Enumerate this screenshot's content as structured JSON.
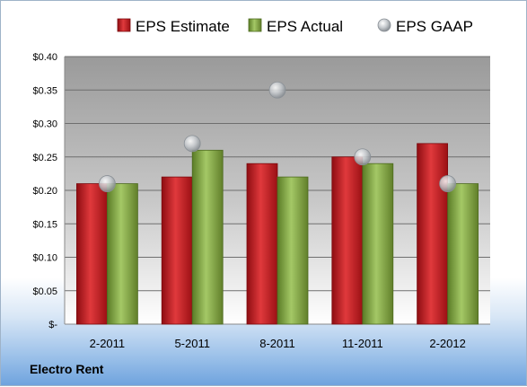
{
  "company": "Electro Rent",
  "chart_data": {
    "type": "bar",
    "categories": [
      "2-2011",
      "5-2011",
      "8-2011",
      "11-2011",
      "2-2012"
    ],
    "series": [
      {
        "name": "EPS Estimate",
        "kind": "bar",
        "color": "#c0151b",
        "values": [
          0.21,
          0.22,
          0.24,
          0.25,
          0.27
        ]
      },
      {
        "name": "EPS Actual",
        "kind": "bar",
        "color": "#7fa83c",
        "values": [
          0.21,
          0.26,
          0.22,
          0.24,
          0.21
        ]
      },
      {
        "name": "EPS GAAP",
        "kind": "marker",
        "color": "#b5b9bd",
        "values": [
          0.21,
          0.27,
          0.35,
          0.25,
          0.21
        ]
      }
    ],
    "ylim": [
      0,
      0.4
    ],
    "yticks": [
      0,
      0.05,
      0.1,
      0.15,
      0.2,
      0.25,
      0.3,
      0.35,
      0.4
    ],
    "ytick_labels": [
      "$-",
      "$0.05",
      "$0.10",
      "$0.15",
      "$0.20",
      "$0.25",
      "$0.30",
      "$0.35",
      "$0.40"
    ],
    "legend": "top",
    "grid": true
  }
}
